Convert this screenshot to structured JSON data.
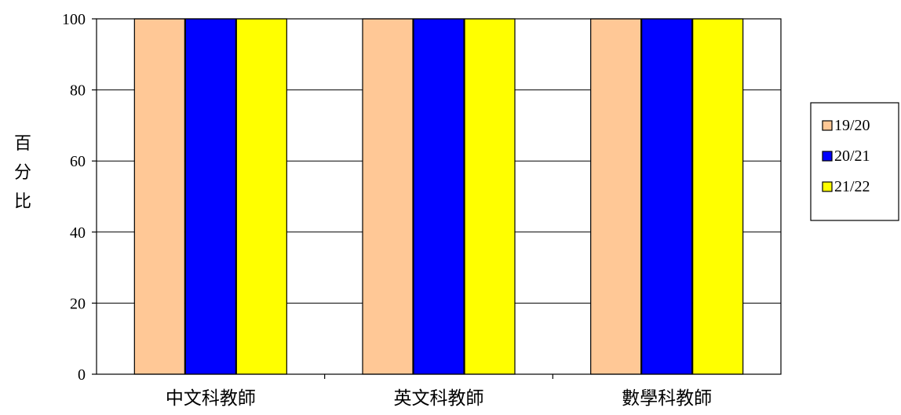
{
  "chart_data": {
    "type": "bar",
    "title": "",
    "ylabel": "百分比",
    "xlabel": "",
    "categories": [
      "中文科教師",
      "英文科教師",
      "數學科教師"
    ],
    "series": [
      {
        "name": "19/20",
        "color": "#FFC896",
        "values": [
          100,
          100,
          100
        ]
      },
      {
        "name": "20/21",
        "color": "#0000FF",
        "values": [
          100,
          100,
          100
        ]
      },
      {
        "name": "21/22",
        "color": "#FFFF00",
        "values": [
          100,
          100,
          100
        ]
      }
    ],
    "ylim": [
      0,
      100
    ],
    "yticks": [
      0,
      20,
      40,
      60,
      80,
      100
    ],
    "grid": true,
    "legend": "right"
  }
}
